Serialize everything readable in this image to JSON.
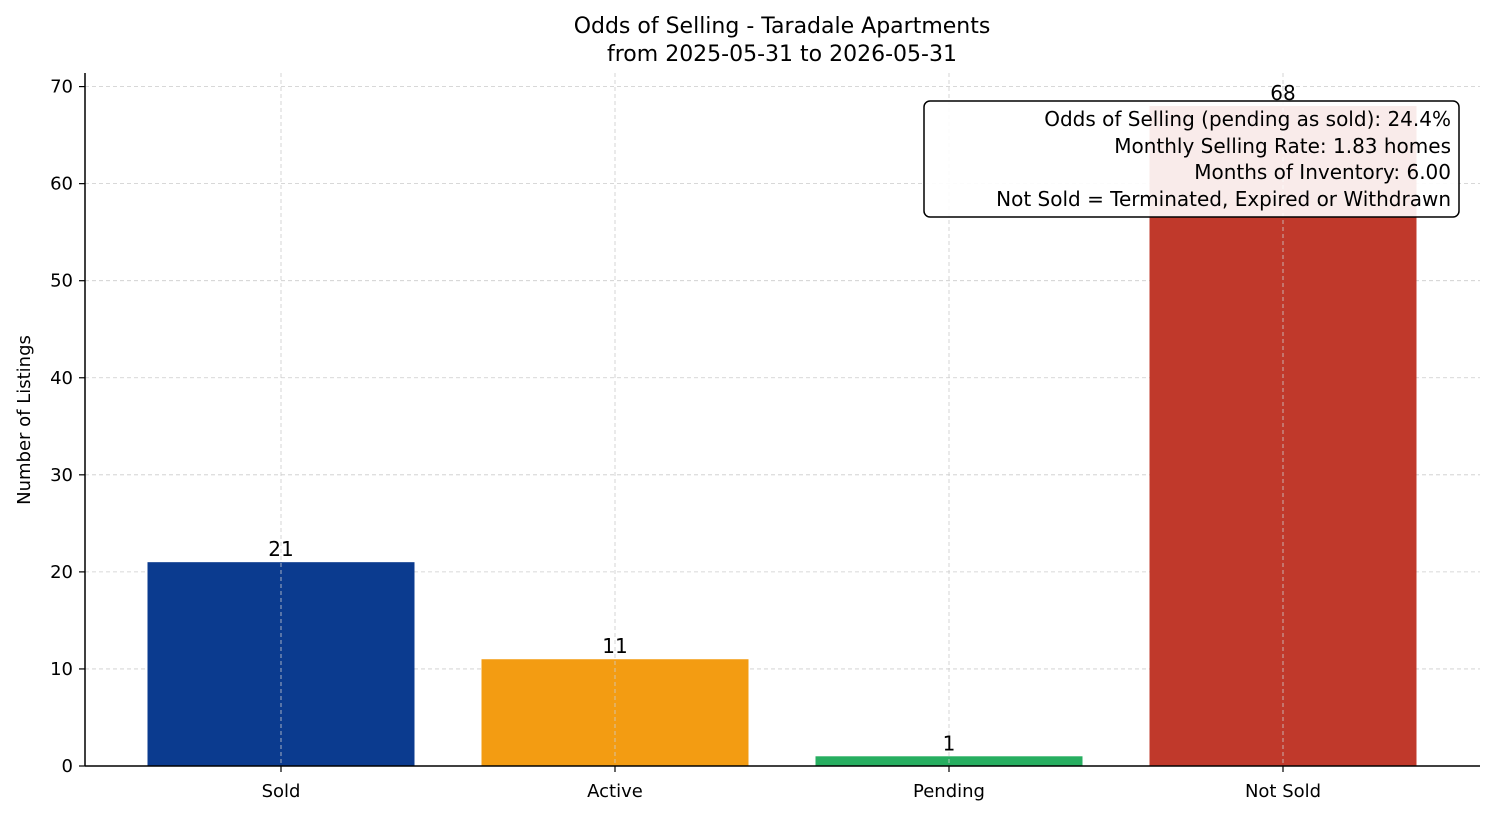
{
  "chart_data": {
    "type": "bar",
    "title": "Odds of Selling - Taradale Apartments",
    "subtitle": "from 2025-05-31 to 2026-05-31",
    "xlabel": "",
    "ylabel": "Number of Listings",
    "categories": [
      "Sold",
      "Active",
      "Pending",
      "Not Sold"
    ],
    "values": [
      21,
      11,
      1,
      68
    ],
    "data_labels": [
      "21",
      "11",
      "1",
      "68"
    ],
    "colors": [
      "#0b3b8f",
      "#f39c12",
      "#27ae60",
      "#c0392b"
    ],
    "ylim": [
      0,
      71.4
    ],
    "yticks": [
      0,
      10,
      20,
      30,
      40,
      50,
      60,
      70
    ],
    "ytick_labels": [
      "0",
      "10",
      "20",
      "30",
      "40",
      "50",
      "60",
      "70"
    ],
    "grid": true,
    "annotation": {
      "placement": "top-right",
      "lines": [
        "Odds of Selling (pending as sold): 24.4%",
        "Monthly Selling Rate: 1.83 homes",
        "Months of Inventory: 6.00",
        "Not Sold = Terminated, Expired or Withdrawn"
      ]
    }
  }
}
